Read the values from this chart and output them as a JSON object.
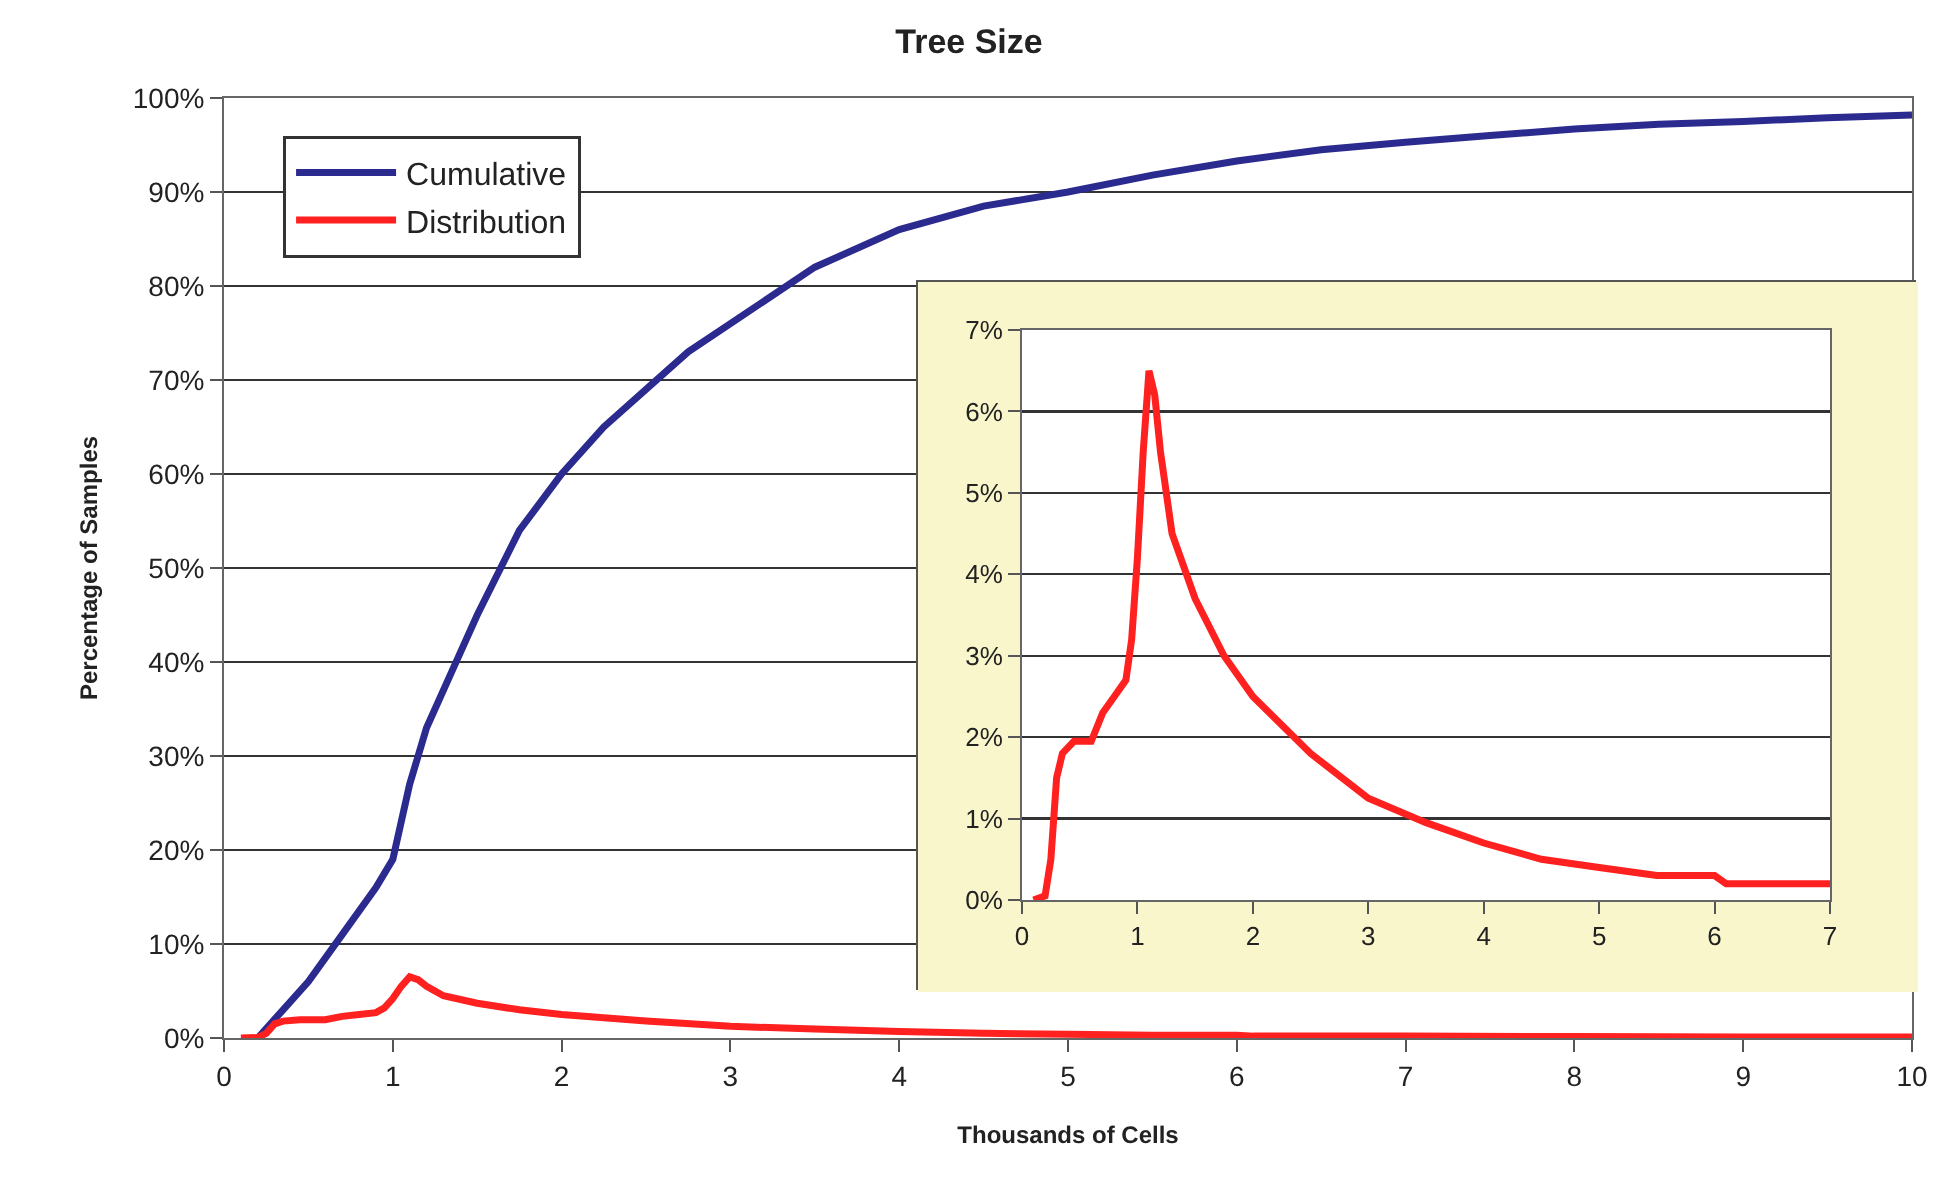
{
  "chart_data": [
    {
      "type": "line",
      "title": "Tree Size",
      "xlabel": "Thousands of Cells",
      "ylabel": "Percentage of Samples",
      "xlim": [
        0,
        10
      ],
      "xticks": [
        0,
        1,
        2,
        3,
        4,
        5,
        6,
        7,
        8,
        9,
        10
      ],
      "ylim": [
        0,
        100
      ],
      "yticks": [
        {
          "value": 0,
          "label": "0%"
        },
        {
          "value": 10,
          "label": "10%"
        },
        {
          "value": 20,
          "label": "20%"
        },
        {
          "value": 30,
          "label": "30%"
        },
        {
          "value": 40,
          "label": "40%"
        },
        {
          "value": 50,
          "label": "50%"
        },
        {
          "value": 60,
          "label": "60%"
        },
        {
          "value": 70,
          "label": "70%"
        },
        {
          "value": 80,
          "label": "80%"
        },
        {
          "value": 90,
          "label": "90%"
        },
        {
          "value": 100,
          "label": "100%"
        }
      ],
      "grid": "y",
      "legend": "top left",
      "marker": "none",
      "line_style": "solid",
      "series": [
        {
          "name": "Cumulative",
          "color": "#2b2b8f",
          "x": [
            0.2,
            0.35,
            0.5,
            0.7,
            0.9,
            1.0,
            1.05,
            1.1,
            1.2,
            1.35,
            1.5,
            1.75,
            2.0,
            2.25,
            2.5,
            2.75,
            3.0,
            3.5,
            4.0,
            4.5,
            5.0,
            5.5,
            6.0,
            6.5,
            7.0,
            7.5,
            8.0,
            8.5,
            9.0,
            9.5,
            10.0
          ],
          "values": [
            0,
            3,
            6,
            11,
            16,
            19,
            23,
            27,
            33,
            39,
            45,
            54,
            60,
            65,
            69,
            73,
            76,
            82,
            86,
            88.5,
            90,
            91.8,
            93.3,
            94.5,
            95.3,
            96,
            96.7,
            97.2,
            97.5,
            97.9,
            98.2
          ]
        },
        {
          "name": "Distribution",
          "color": "#ff2020",
          "x": [
            0.1,
            0.2,
            0.25,
            0.3,
            0.35,
            0.45,
            0.6,
            0.7,
            0.8,
            0.9,
            0.95,
            1.0,
            1.05,
            1.1,
            1.15,
            1.2,
            1.3,
            1.5,
            1.75,
            2.0,
            2.5,
            3.0,
            3.5,
            4.0,
            4.5,
            5.0,
            5.5,
            6.0,
            6.1,
            7.0,
            8.0,
            9.0,
            10.0
          ],
          "values": [
            0,
            0.05,
            0.5,
            1.5,
            1.8,
            1.95,
            1.95,
            2.3,
            2.5,
            2.7,
            3.2,
            4.2,
            5.5,
            6.5,
            6.2,
            5.5,
            4.5,
            3.7,
            3.0,
            2.5,
            1.8,
            1.25,
            0.95,
            0.7,
            0.5,
            0.4,
            0.3,
            0.3,
            0.2,
            0.2,
            0.15,
            0.1,
            0.1
          ]
        }
      ]
    },
    {
      "type": "line",
      "xlim": [
        0,
        7
      ],
      "xticks": [
        0,
        1,
        2,
        3,
        4,
        5,
        6,
        7
      ],
      "ylim": [
        0,
        7
      ],
      "yticks": [
        {
          "value": 0,
          "label": "0%"
        },
        {
          "value": 1,
          "label": "1%"
        },
        {
          "value": 2,
          "label": "2%"
        },
        {
          "value": 3,
          "label": "3%"
        },
        {
          "value": 4,
          "label": "4%"
        },
        {
          "value": 5,
          "label": "5%"
        },
        {
          "value": 6,
          "label": "6%"
        },
        {
          "value": 7,
          "label": "7%"
        }
      ],
      "grid": "y",
      "marker": "none",
      "line_style": "solid",
      "series": [
        {
          "color": "#ff2020",
          "x": [
            0.1,
            0.2,
            0.25,
            0.3,
            0.35,
            0.45,
            0.6,
            0.7,
            0.8,
            0.9,
            0.95,
            1.0,
            1.05,
            1.1,
            1.15,
            1.2,
            1.3,
            1.5,
            1.75,
            2.0,
            2.5,
            3.0,
            3.5,
            4.0,
            4.5,
            5.0,
            5.5,
            6.0,
            6.1,
            7.0
          ],
          "values": [
            0,
            0.05,
            0.5,
            1.5,
            1.8,
            1.95,
            1.95,
            2.3,
            2.5,
            2.7,
            3.2,
            4.2,
            5.5,
            6.5,
            6.2,
            5.5,
            4.5,
            3.7,
            3.0,
            2.5,
            1.8,
            1.25,
            0.95,
            0.7,
            0.5,
            0.4,
            0.3,
            0.3,
            0.2,
            0.2
          ]
        }
      ]
    }
  ]
}
